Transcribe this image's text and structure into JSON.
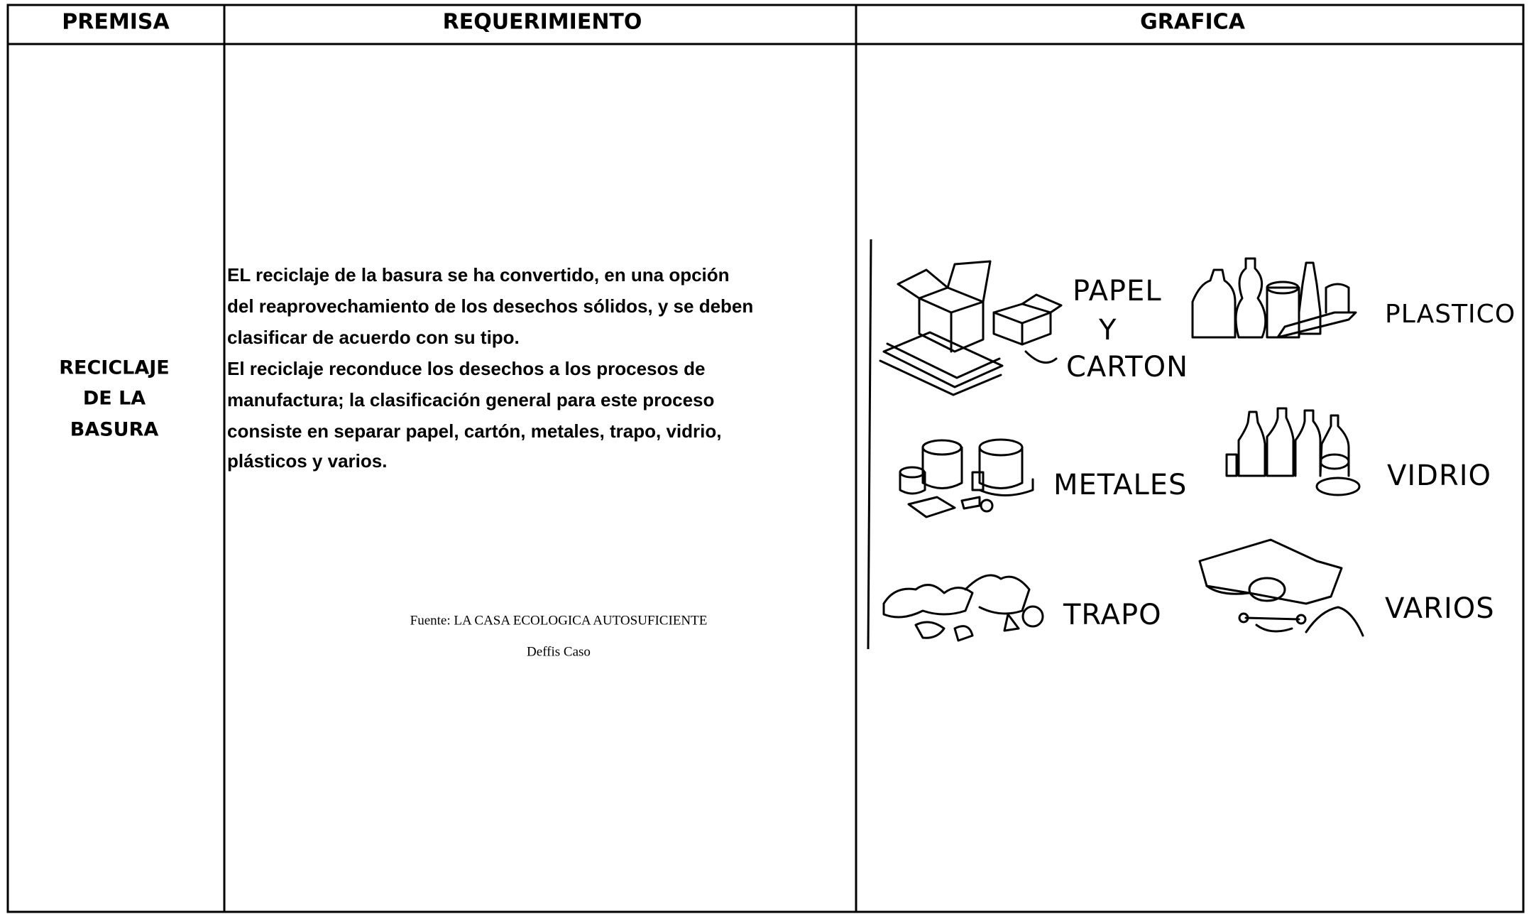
{
  "table": {
    "headers": [
      "PREMISA",
      "REQUERIMIENTO",
      "GRAFICA"
    ],
    "premisa": [
      "RECICLAJE",
      "DE LA",
      "BASURA"
    ],
    "requerimiento": [
      "EL reciclaje de la basura se ha convertido, en una opción",
      "del reaprovechamiento de los desechos sólidos, y se deben",
      "clasificar de acuerdo con su tipo.",
      "El reciclaje reconduce los desechos a los procesos de",
      "manufactura; la clasificación general para este proceso",
      "consiste en separar papel, cartón, metales, trapo, vidrio,",
      "plásticos y varios."
    ],
    "fuente": [
      "Fuente: LA CASA ECOLOGICA AUTOSUFICIENTE",
      "Deffis Caso"
    ],
    "grafica": {
      "papel": [
        "PAPEL",
        "Y",
        "CARTON"
      ],
      "plastico": "PLASTICO",
      "metales": "METALES",
      "vidrio": "VIDRIO",
      "trapo": "TRAPO",
      "varios": "VARIOS"
    }
  }
}
